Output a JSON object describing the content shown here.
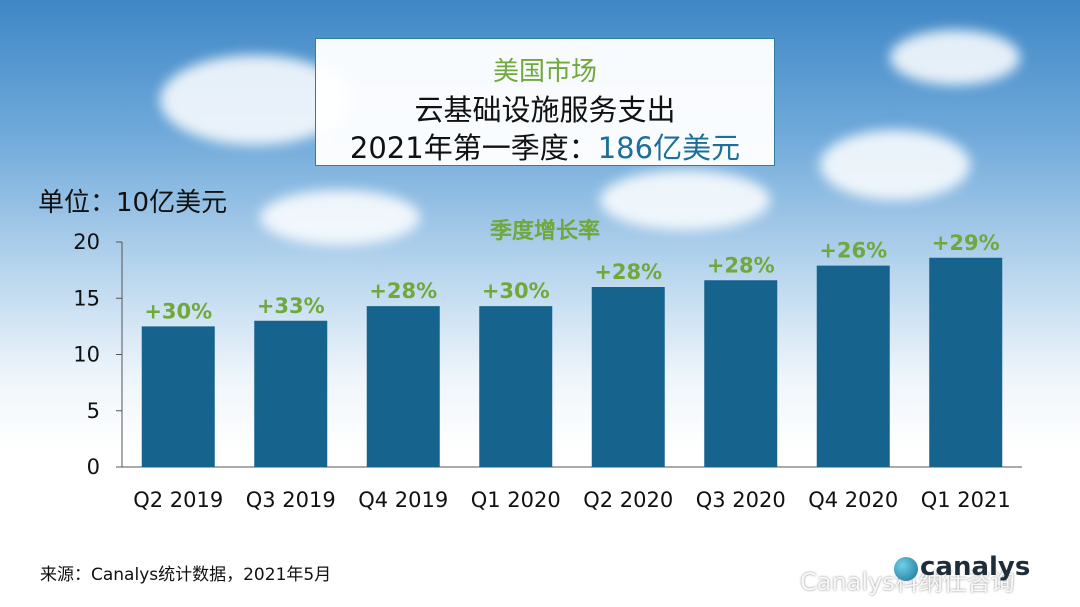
{
  "title": {
    "line1": "美国市场",
    "line2": "云基础设施服务支出",
    "line3_prefix": "2021年第一季度：",
    "line3_value": "186亿美元"
  },
  "unit_label": "单位：10亿美元",
  "source": "来源：Canalys统计数据，2021年5月",
  "brand": "canalys",
  "watermark": "Canalys科纳仕咨询",
  "colors": {
    "bar": "#16638d",
    "growth": "#70a83b",
    "highlight": "#1d6f98"
  },
  "chart_data": {
    "type": "bar",
    "title": "",
    "series_label": "季度增长率",
    "xlabel": "",
    "ylabel": "单位：10亿美元",
    "ylim": [
      0,
      20
    ],
    "yticks": [
      0,
      5,
      10,
      15,
      20
    ],
    "categories": [
      "Q2 2019",
      "Q3 2019",
      "Q4 2019",
      "Q1 2020",
      "Q2 2020",
      "Q3 2020",
      "Q4 2020",
      "Q1 2021"
    ],
    "values": [
      12.5,
      13.0,
      14.3,
      14.3,
      16.0,
      16.6,
      17.9,
      18.6
    ],
    "growth_labels": [
      "+30%",
      "+33%",
      "+28%",
      "+30%",
      "+28%",
      "+28%",
      "+26%",
      "+29%"
    ],
    "grid": false,
    "legend": "none"
  }
}
